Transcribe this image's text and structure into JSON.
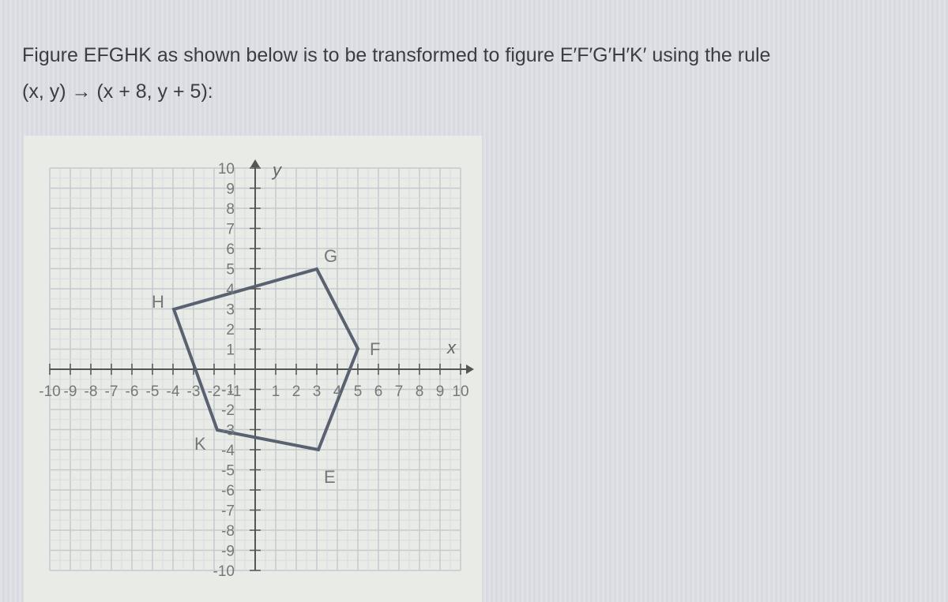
{
  "question": {
    "line1": "Figure EFGHK as shown below is to be transformed to figure E′F′G′H′K′ using the rule",
    "line2": "(x, y) → (x + 8, y + 5):"
  },
  "graph": {
    "x_axis_label": "x",
    "y_axis_label": "y",
    "x_tick_labels": [
      -10,
      -9,
      -8,
      -7,
      -6,
      -5,
      -4,
      -3,
      -2,
      -1,
      1,
      2,
      3,
      4,
      5,
      6,
      7,
      8,
      9,
      10
    ],
    "y_tick_labels": [
      10,
      9,
      8,
      7,
      6,
      5,
      4,
      3,
      2,
      1,
      -1,
      -2,
      -3,
      -4,
      -5,
      -6,
      -7,
      -8,
      -9,
      -10
    ],
    "vertex_labels": [
      "H",
      "G",
      "F",
      "E",
      "K"
    ]
  }
}
